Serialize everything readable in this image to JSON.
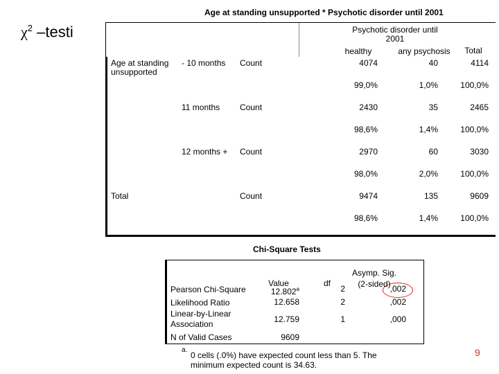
{
  "slide_title": {
    "symbol": "χ",
    "superscript": "2",
    "text": "–testi"
  },
  "crosstab": {
    "title": "Age at standing unsupported * Psychotic disorder until 2001",
    "column_group": "Psychotic disorder until 2001",
    "columns": [
      "healthy",
      "any psychosis",
      "Total"
    ],
    "row_group": "Age at standing unsupported",
    "rows": [
      {
        "label": "- 10 months",
        "statistic": "Count",
        "counts": [
          "4074",
          "40",
          "4114"
        ],
        "percents": [
          "99,0%",
          "1,0%",
          "100,0%"
        ]
      },
      {
        "label": "11 months",
        "statistic": "Count",
        "counts": [
          "2430",
          "35",
          "2465"
        ],
        "percents": [
          "98,6%",
          "1,4%",
          "100,0%"
        ]
      },
      {
        "label": "12 months +",
        "statistic": "Count",
        "counts": [
          "2970",
          "60",
          "3030"
        ],
        "percents": [
          "98,0%",
          "2,0%",
          "100,0%"
        ]
      }
    ],
    "total_row": {
      "label": "Total",
      "statistic": "Count",
      "counts": [
        "9474",
        "135",
        "9609"
      ],
      "percents": [
        "98,6%",
        "1,4%",
        "100,0%"
      ]
    }
  },
  "chi_square": {
    "title": "Chi-Square Tests",
    "headers": [
      "Value",
      "df",
      "Asymp. Sig. (2-sided)"
    ],
    "rows": [
      {
        "label": "Pearson Chi-Square",
        "value": "12.802",
        "value_note": "a",
        "df": "2",
        "sig": ",002"
      },
      {
        "label": "Likelihood Ratio",
        "value": "12.658",
        "df": "2",
        "sig": ",002"
      },
      {
        "label": "Linear-by-Linear Association",
        "value": "12.759",
        "df": "1",
        "sig": ",000"
      },
      {
        "label": "N of Valid Cases",
        "value": "9609"
      }
    ],
    "footnote_marker": "a.",
    "footnote": "0 cells (.0%) have expected count less than 5. The minimum expected count is 34.63."
  },
  "page_number": "9"
}
